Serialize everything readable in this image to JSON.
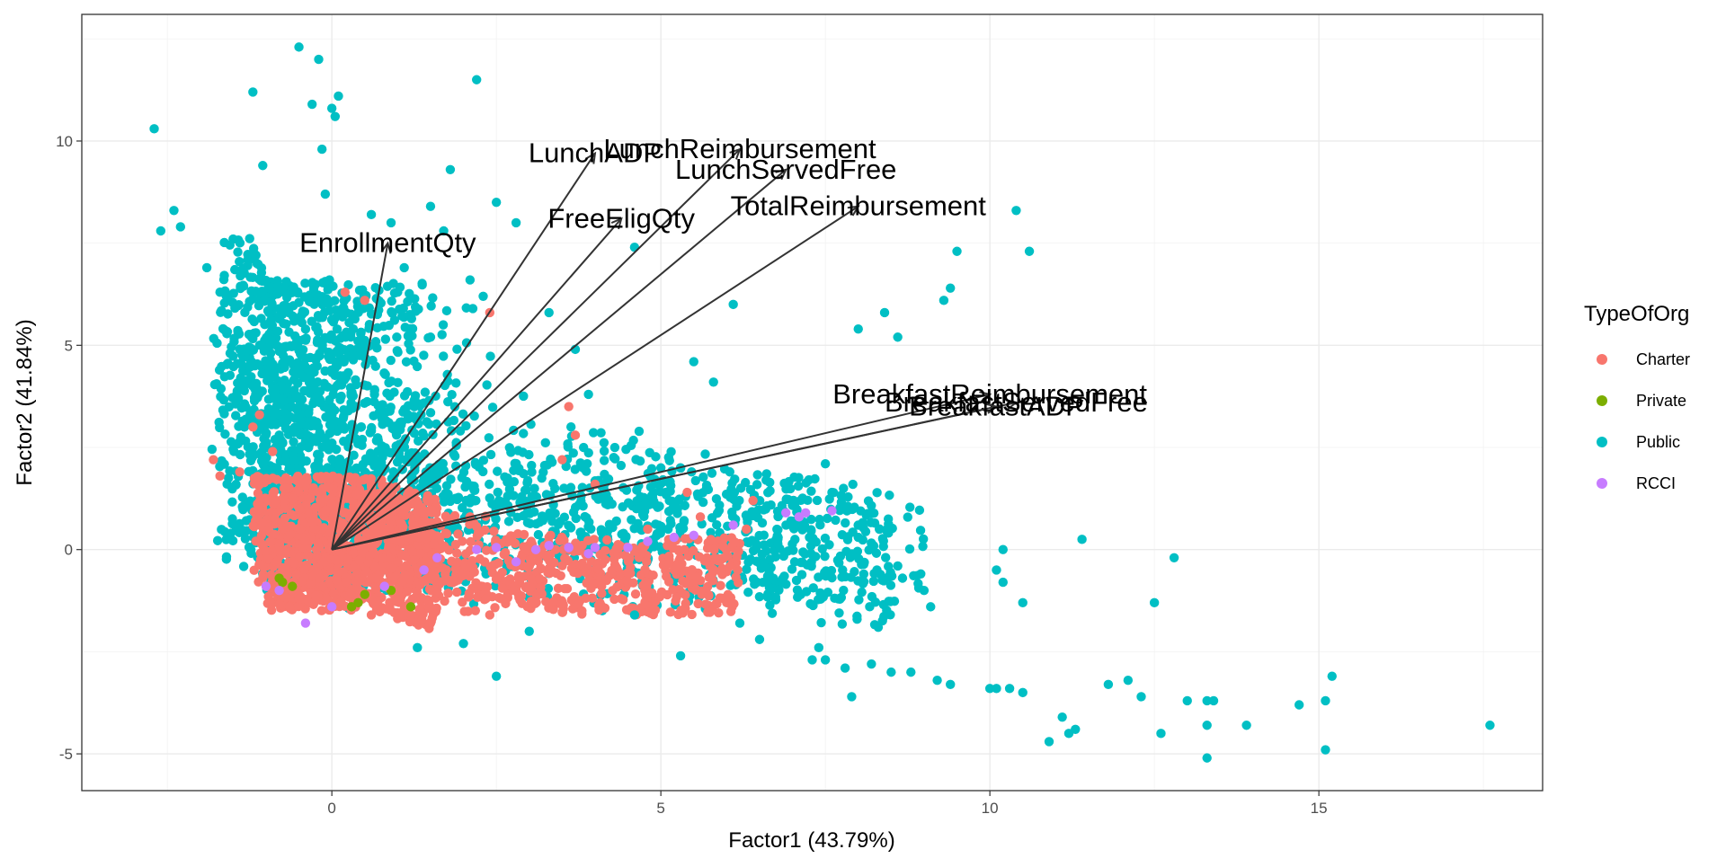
{
  "chart_data": {
    "type": "scatter",
    "subtype": "pca-biplot",
    "xlabel": "Factor1 (43.79%)",
    "ylabel": "Factor2 (41.84%)",
    "xlim": [
      -3.8,
      18.4
    ],
    "ylim": [
      -5.9,
      13.1
    ],
    "x_ticks": [
      0,
      5,
      10,
      15
    ],
    "y_ticks": [
      -5,
      0,
      5,
      10
    ],
    "x_tick_labels": [
      "0",
      "5",
      "10",
      "15"
    ],
    "y_tick_labels": [
      "-5",
      "0",
      "5",
      "10"
    ],
    "grid": true,
    "legend": {
      "title": "TypeOfOrg",
      "position": "right",
      "entries": [
        {
          "name": "Charter",
          "color": "#F8766D"
        },
        {
          "name": "Private",
          "color": "#7CAE00"
        },
        {
          "name": "Public",
          "color": "#00BFC4"
        },
        {
          "name": "RCCI",
          "color": "#C77CFF"
        }
      ]
    },
    "loadings": [
      {
        "name": "EnrollmentQty",
        "x": 0.85,
        "y": 7.5
      },
      {
        "name": "LunchADP",
        "x": 4.0,
        "y": 9.7
      },
      {
        "name": "LunchReimbursement",
        "x": 6.2,
        "y": 9.8
      },
      {
        "name": "LunchServedFree",
        "x": 6.9,
        "y": 9.3
      },
      {
        "name": "FreeEligQty",
        "x": 4.4,
        "y": 8.1
      },
      {
        "name": "TotalReimbursement",
        "x": 8.0,
        "y": 8.4
      },
      {
        "name": "BreakfastReimbursement",
        "x": 10.0,
        "y": 3.8
      },
      {
        "name": "BreakfastServedFree",
        "x": 10.4,
        "y": 3.6
      },
      {
        "name": "BreakfastADP",
        "x": 10.1,
        "y": 3.5
      }
    ],
    "series": [
      {
        "name": "Public",
        "points": [
          [
            -2.7,
            10.3
          ],
          [
            -0.5,
            12.3
          ],
          [
            -0.2,
            12.0
          ],
          [
            2.2,
            11.5
          ],
          [
            -1.2,
            11.2
          ],
          [
            -0.3,
            10.9
          ],
          [
            0.1,
            11.1
          ],
          [
            0.0,
            10.8
          ],
          [
            0.05,
            10.6
          ],
          [
            -1.05,
            9.4
          ],
          [
            -0.15,
            9.8
          ],
          [
            1.8,
            9.3
          ],
          [
            -2.4,
            8.3
          ],
          [
            -2.6,
            7.8
          ],
          [
            -2.3,
            7.9
          ],
          [
            -0.1,
            8.7
          ],
          [
            1.5,
            8.4
          ],
          [
            2.8,
            8.0
          ],
          [
            10.4,
            8.3
          ],
          [
            9.5,
            7.3
          ],
          [
            10.6,
            7.3
          ],
          [
            9.3,
            6.1
          ],
          [
            9.4,
            6.4
          ],
          [
            8.0,
            5.4
          ],
          [
            8.4,
            5.8
          ],
          [
            8.6,
            5.2
          ],
          [
            6.1,
            6.0
          ],
          [
            5.5,
            4.6
          ],
          [
            5.8,
            4.1
          ],
          [
            4.6,
            7.4
          ],
          [
            1.1,
            6.9
          ],
          [
            2.1,
            6.6
          ],
          [
            3.3,
            5.8
          ],
          [
            3.7,
            4.9
          ],
          [
            1.5,
            5.2
          ],
          [
            3.9,
            3.8
          ],
          [
            4.3,
            2.5
          ],
          [
            5.0,
            2.0
          ],
          [
            6.6,
            1.7
          ],
          [
            7.5,
            2.1
          ],
          [
            7.6,
            1.4
          ],
          [
            8.0,
            0.3
          ],
          [
            8.6,
            -0.4
          ],
          [
            9.1,
            -1.4
          ],
          [
            9.0,
            -1.0
          ],
          [
            7.4,
            -2.4
          ],
          [
            7.3,
            -2.7
          ],
          [
            7.5,
            -2.7
          ],
          [
            7.8,
            -2.9
          ],
          [
            8.2,
            -2.8
          ],
          [
            8.5,
            -3.0
          ],
          [
            8.8,
            -3.0
          ],
          [
            9.2,
            -3.2
          ],
          [
            9.4,
            -3.3
          ],
          [
            10.0,
            -3.4
          ],
          [
            10.1,
            -3.4
          ],
          [
            10.3,
            -3.4
          ],
          [
            10.5,
            -3.5
          ],
          [
            7.9,
            -3.6
          ],
          [
            10.2,
            -0.8
          ],
          [
            10.1,
            -0.5
          ],
          [
            10.2,
            0.0
          ],
          [
            10.5,
            -1.3
          ],
          [
            11.4,
            0.25
          ],
          [
            12.8,
            -0.2
          ],
          [
            12.5,
            -1.3
          ],
          [
            11.1,
            -4.1
          ],
          [
            10.9,
            -4.7
          ],
          [
            11.2,
            -4.5
          ],
          [
            11.3,
            -4.4
          ],
          [
            11.8,
            -3.3
          ],
          [
            12.1,
            -3.2
          ],
          [
            12.3,
            -3.6
          ],
          [
            13.0,
            -3.7
          ],
          [
            13.3,
            -3.7
          ],
          [
            13.4,
            -3.7
          ],
          [
            12.6,
            -4.5
          ],
          [
            13.3,
            -4.3
          ],
          [
            13.9,
            -4.3
          ],
          [
            13.3,
            -5.1
          ],
          [
            14.7,
            -3.8
          ],
          [
            15.2,
            -3.1
          ],
          [
            15.1,
            -3.7
          ],
          [
            15.1,
            -4.9
          ],
          [
            17.6,
            -4.3
          ],
          [
            2.5,
            -3.1
          ],
          [
            2.0,
            -2.3
          ],
          [
            1.3,
            -2.4
          ],
          [
            3.0,
            -2.0
          ],
          [
            4.6,
            -1.6
          ],
          [
            5.3,
            -2.6
          ],
          [
            6.2,
            -1.8
          ],
          [
            6.5,
            -2.2
          ],
          [
            -1.5,
            7.6
          ],
          [
            -1.7,
            6.3
          ],
          [
            -1.9,
            6.9
          ],
          [
            0.6,
            8.2
          ],
          [
            0.9,
            8.0
          ],
          [
            1.0,
            6.3
          ],
          [
            1.7,
            7.8
          ],
          [
            2.5,
            8.5
          ],
          [
            2.3,
            6.2
          ]
        ]
      },
      {
        "name": "Charter",
        "points": [
          [
            -1.8,
            2.2
          ],
          [
            -1.7,
            1.8
          ],
          [
            -1.4,
            1.9
          ],
          [
            -1.2,
            3.0
          ],
          [
            -1.1,
            3.3
          ],
          [
            -0.9,
            2.4
          ],
          [
            -0.7,
            1.5
          ],
          [
            0.2,
            6.3
          ],
          [
            0.5,
            6.1
          ],
          [
            2.4,
            5.8
          ],
          [
            3.6,
            3.5
          ],
          [
            3.7,
            2.8
          ],
          [
            3.5,
            2.2
          ],
          [
            4.0,
            1.6
          ],
          [
            6.4,
            1.2
          ],
          [
            5.4,
            1.4
          ],
          [
            6.3,
            0.5
          ],
          [
            5.7,
            -0.2
          ],
          [
            5.2,
            -0.5
          ],
          [
            6.0,
            -1.3
          ],
          [
            4.1,
            -0.9
          ],
          [
            3.8,
            -1.5
          ],
          [
            2.4,
            -1.6
          ],
          [
            1.5,
            -1.8
          ],
          [
            0.6,
            -1.6
          ],
          [
            -0.5,
            -1.2
          ],
          [
            -0.8,
            -0.6
          ],
          [
            1.1,
            1.2
          ],
          [
            2.1,
            0.8
          ],
          [
            3.3,
            0.3
          ],
          [
            1.8,
            -0.8
          ],
          [
            0.4,
            0.5
          ],
          [
            -0.4,
            0.2
          ],
          [
            4.8,
            0.5
          ],
          [
            5.6,
            0.8
          ],
          [
            2.9,
            -0.4
          ]
        ]
      },
      {
        "name": "Private",
        "points": [
          [
            -0.8,
            -0.7
          ],
          [
            -0.75,
            -0.8
          ],
          [
            0.4,
            -1.3
          ],
          [
            0.5,
            -1.1
          ],
          [
            1.2,
            -1.4
          ],
          [
            -0.6,
            -0.9
          ],
          [
            0.9,
            -1.0
          ],
          [
            0.3,
            -1.4
          ]
        ]
      },
      {
        "name": "RCCI",
        "points": [
          [
            -0.8,
            -1.0
          ],
          [
            -1.0,
            -0.9
          ],
          [
            -0.4,
            -1.8
          ],
          [
            0.0,
            -1.4
          ],
          [
            0.8,
            -0.9
          ],
          [
            1.6,
            -0.2
          ],
          [
            2.2,
            0.0
          ],
          [
            2.5,
            0.05
          ],
          [
            3.1,
            0.0
          ],
          [
            3.3,
            0.1
          ],
          [
            3.6,
            0.05
          ],
          [
            4.0,
            0.05
          ],
          [
            4.5,
            0.05
          ],
          [
            4.8,
            0.2
          ],
          [
            5.2,
            0.3
          ],
          [
            5.5,
            0.35
          ],
          [
            6.1,
            0.6
          ],
          [
            6.9,
            0.9
          ],
          [
            7.1,
            0.8
          ],
          [
            7.2,
            0.9
          ],
          [
            7.6,
            0.95
          ],
          [
            1.4,
            -0.5
          ],
          [
            2.8,
            -0.3
          ],
          [
            3.9,
            -0.1
          ]
        ]
      }
    ]
  }
}
